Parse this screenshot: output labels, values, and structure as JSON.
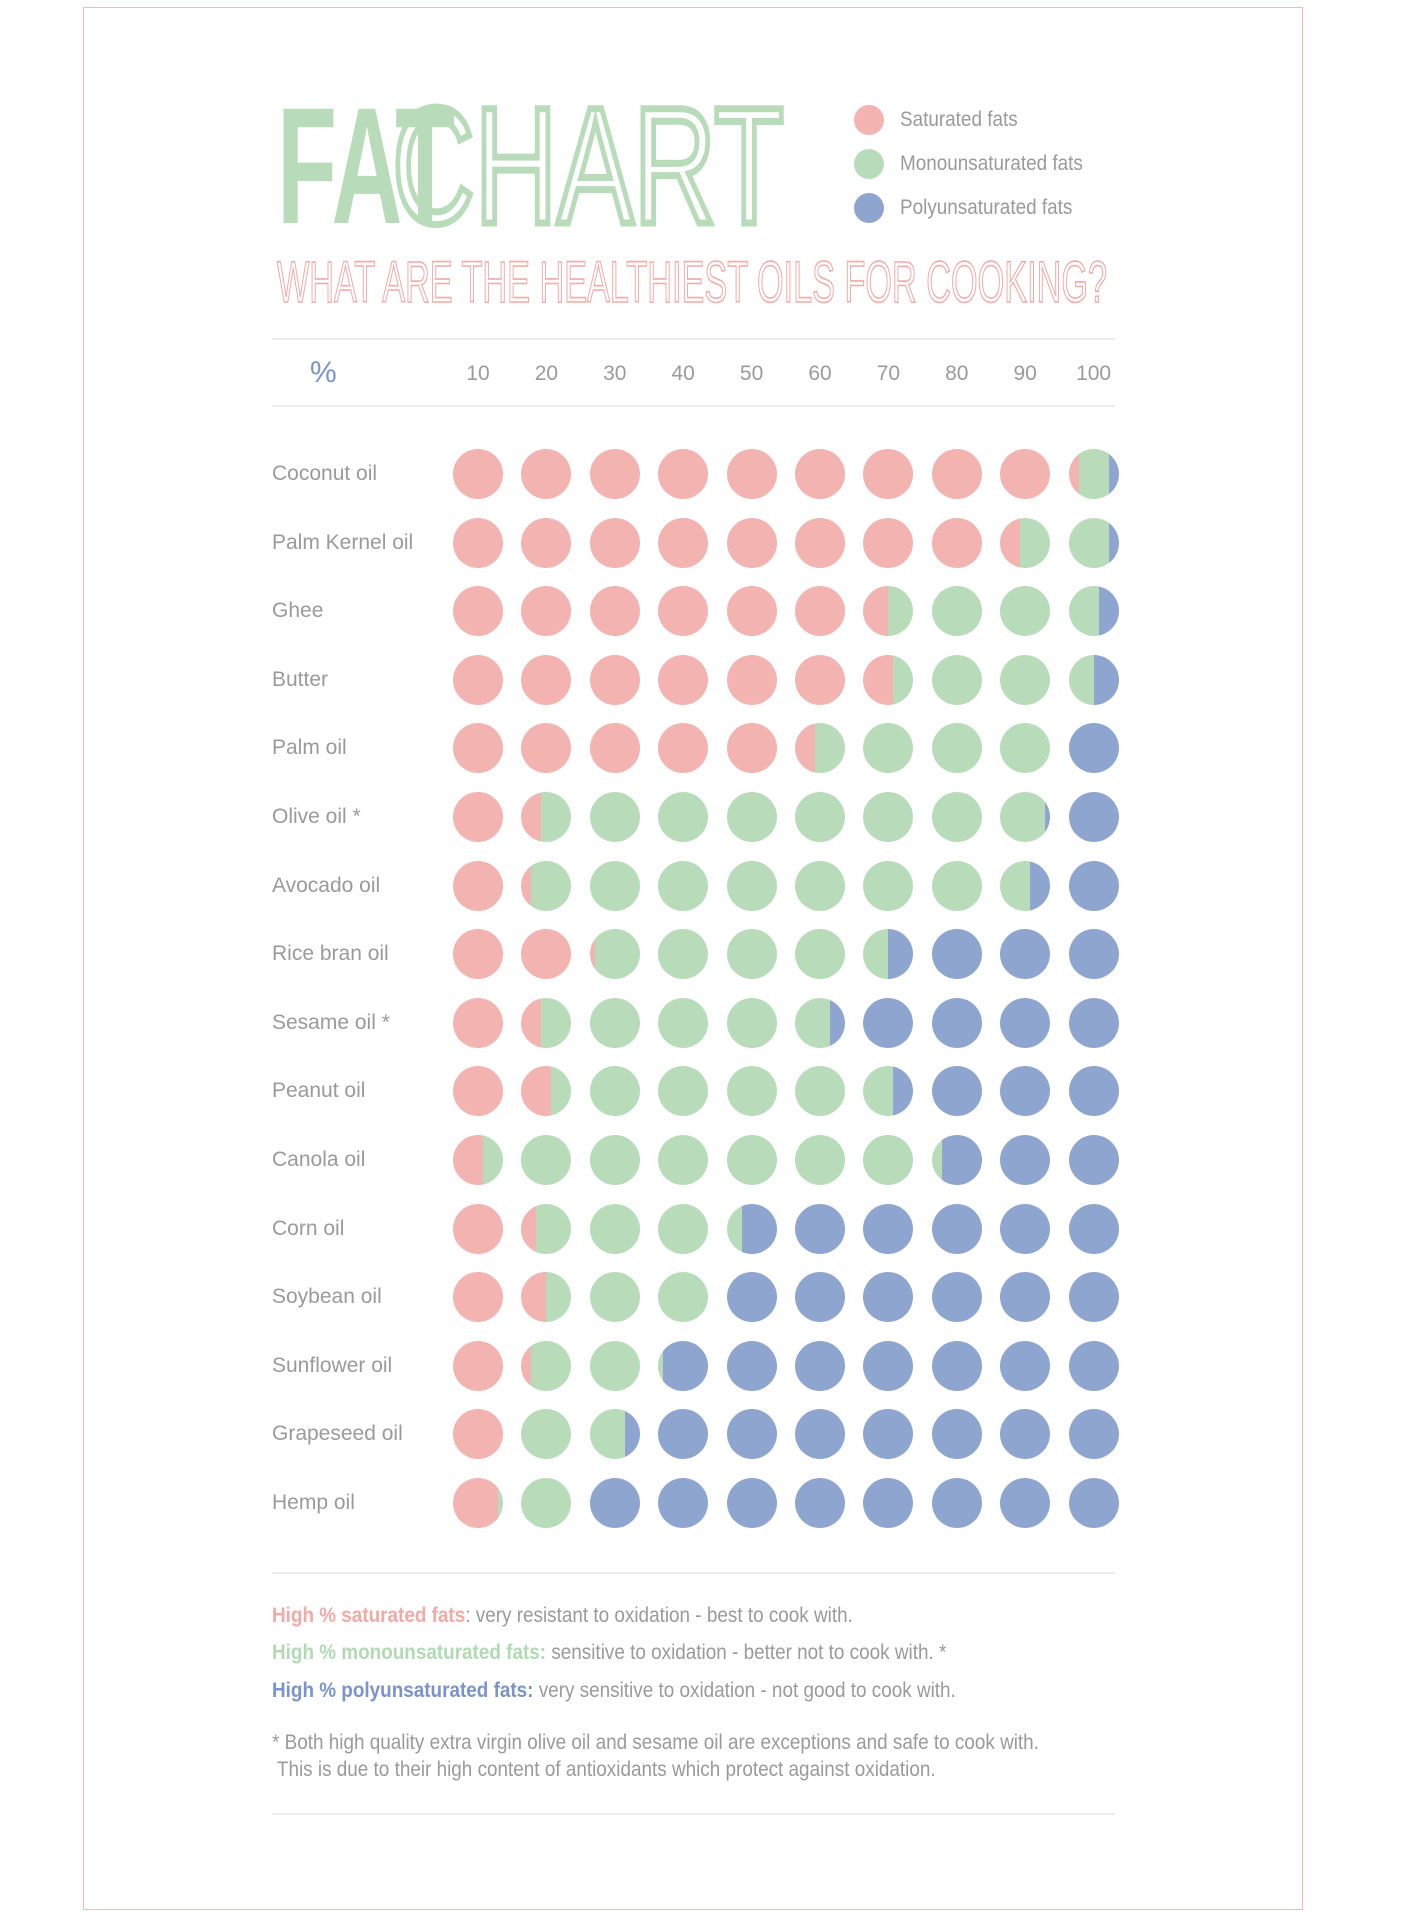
{
  "colors": {
    "saturated": "#f3b3b0",
    "mono": "#b8dcb9",
    "poly": "#8ea5cf",
    "title": "#b8dcb9",
    "subtitle": "#f2aaa6"
  },
  "header": {
    "title_bold": "FAT",
    "title_light": "CHART",
    "subtitle": "WHAT ARE THE HEALTHIEST OILS FOR COOKING?"
  },
  "legend": [
    {
      "label": "Saturated fats",
      "key": "saturated"
    },
    {
      "label": "Monounsaturated fats",
      "key": "mono"
    },
    {
      "label": "Polyunsaturated fats",
      "key": "poly"
    }
  ],
  "chart_data": {
    "type": "dot-matrix stacked percentage",
    "axis_label": "%",
    "ticks": [
      "10",
      "20",
      "30",
      "40",
      "50",
      "60",
      "70",
      "80",
      "90",
      "100"
    ],
    "xlim": [
      0,
      100
    ],
    "series_order": [
      "saturated",
      "mono",
      "poly"
    ],
    "rows": [
      {
        "name": "Coconut oil",
        "saturated": 92,
        "mono": 6,
        "poly": 2
      },
      {
        "name": "Palm Kernel oil",
        "saturated": 84,
        "mono": 14,
        "poly": 2
      },
      {
        "name": "Ghee",
        "saturated": 65,
        "mono": 31,
        "poly": 4
      },
      {
        "name": "Butter",
        "saturated": 66,
        "mono": 29,
        "poly": 5
      },
      {
        "name": "Palm oil",
        "saturated": 54,
        "mono": 36,
        "poly": 10
      },
      {
        "name": "Olive oil *",
        "saturated": 14,
        "mono": 75,
        "poly": 11
      },
      {
        "name": "Avocado oil",
        "saturated": 12,
        "mono": 74,
        "poly": 14
      },
      {
        "name": "Rice bran oil",
        "saturated": 21,
        "mono": 44,
        "poly": 35
      },
      {
        "name": "Sesame oil *",
        "saturated": 14,
        "mono": 43,
        "poly": 43
      },
      {
        "name": "Peanut oil",
        "saturated": 16,
        "mono": 50,
        "poly": 34
      },
      {
        "name": "Canola oil",
        "saturated": 6,
        "mono": 66,
        "poly": 28
      },
      {
        "name": "Corn oil",
        "saturated": 13,
        "mono": 30,
        "poly": 57
      },
      {
        "name": "Soybean oil",
        "saturated": 15,
        "mono": 25,
        "poly": 60
      },
      {
        "name": "Sunflower oil",
        "saturated": 12,
        "mono": 19,
        "poly": 69
      },
      {
        "name": "Grapeseed oil",
        "saturated": 10,
        "mono": 17,
        "poly": 73
      },
      {
        "name": "Hemp oil",
        "saturated": 9,
        "mono": 11,
        "poly": 80
      }
    ]
  },
  "notes": {
    "sat_label": "High % saturated fats",
    "sat_text": ": very resistant to oxidation - best to cook with.",
    "mono_label": "High % monounsaturated fats:",
    "mono_text": " sensitive to oxidation - better not to cook with. *",
    "poly_label": "High % polyunsaturated fats:",
    "poly_text": " very sensitive to oxidation - not good to cook with.",
    "footnote_1": "* Both high quality extra virgin olive oil and sesame oil are exceptions and safe to cook with.",
    "footnote_2": " This is due to their high content of antioxidants which protect against oxidation."
  }
}
